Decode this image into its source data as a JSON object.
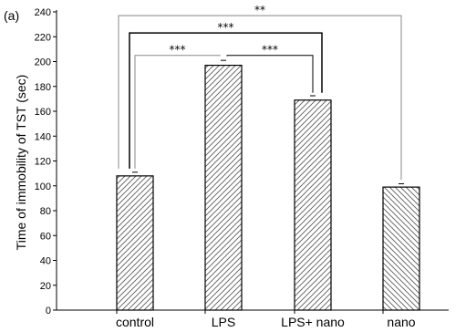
{
  "chart_data": {
    "type": "bar",
    "panel_label": "(a)",
    "ylabel": "Time of immobility of TST (sec)",
    "xlabel": "",
    "ylim": [
      0,
      240
    ],
    "yticks": [
      0,
      20,
      40,
      60,
      80,
      100,
      120,
      140,
      160,
      180,
      200,
      220,
      240
    ],
    "categories": [
      "control",
      "LPS",
      "LPS+ nano",
      "nano"
    ],
    "values": [
      108,
      197,
      169,
      99
    ],
    "errors": [
      1.5,
      2.5,
      2.0,
      1.2
    ],
    "hatch": [
      "diagonal-right",
      "diagonal-right",
      "diagonal-right",
      "diagonal-left"
    ],
    "significance": [
      {
        "from": 0,
        "to": 1,
        "label": "***",
        "y": 205
      },
      {
        "from": 1,
        "to": 2,
        "label": "***",
        "y": 205
      },
      {
        "from": 0,
        "to": 2,
        "label": "***",
        "y": 223
      },
      {
        "from": 0,
        "to": 3,
        "label": "**",
        "y": 237
      }
    ],
    "grid": false,
    "colors": {
      "bar_fill": "#ffffff",
      "bar_edge": "#000000",
      "hatch": "#555555",
      "bracket_outer": "#888888"
    }
  }
}
